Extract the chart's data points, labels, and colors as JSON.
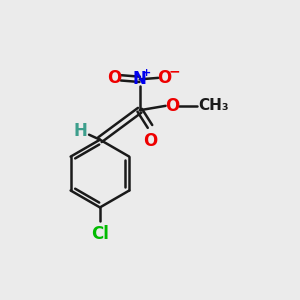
{
  "bg_color": "#ebebeb",
  "bond_color": "#1a1a1a",
  "bond_width": 1.8,
  "colors": {
    "C": "#1a1a1a",
    "H": "#3d9e8c",
    "N": "#0000ee",
    "O": "#ee0000",
    "Cl": "#00bb00"
  },
  "font_size": 12,
  "font_size_small": 11,
  "font_size_super": 8
}
